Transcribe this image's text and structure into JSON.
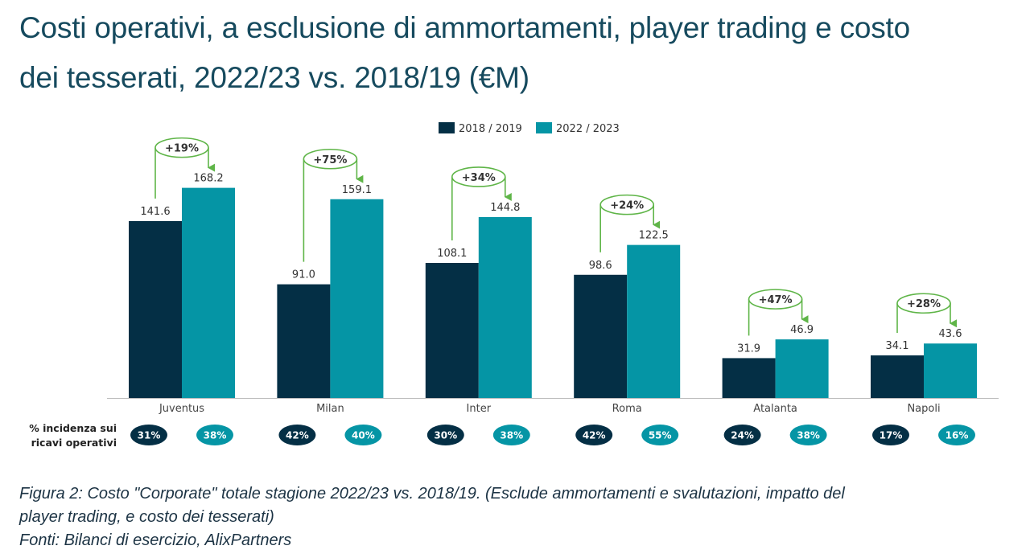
{
  "title": {
    "line1": "Costi operativi, a esclusione di ammortamenti, player trading e costo",
    "line2": "dei tesserati, 2022/23 vs. 2018/19 (€M)"
  },
  "colors": {
    "series_2018": "#042f45",
    "series_2022": "#0595a5",
    "growth": "#5fb548",
    "title": "#164a5e"
  },
  "chart_data": {
    "type": "bar",
    "title": "Costi operativi, a esclusione di ammortamenti, player trading e costo dei tesserati, 2022/23 vs. 2018/19 (€M)",
    "xlabel": "",
    "ylabel": "",
    "ylim": [
      0,
      180
    ],
    "grid": false,
    "legend_position": "top-center",
    "categories": [
      "Juventus",
      "Milan",
      "Inter",
      "Roma",
      "Atalanta",
      "Napoli"
    ],
    "series": [
      {
        "name": "2018 / 2019",
        "values": [
          141.6,
          91.0,
          108.1,
          98.6,
          31.9,
          34.1
        ],
        "labels": [
          "141.6",
          "91.0",
          "108.1",
          "98.6",
          "31.9",
          "34.1"
        ]
      },
      {
        "name": "2022 / 2023",
        "values": [
          168.2,
          159.1,
          144.8,
          122.5,
          46.9,
          43.6
        ],
        "labels": [
          "168.2",
          "159.1",
          "144.8",
          "122.5",
          "46.9",
          "43.6"
        ]
      }
    ],
    "growth_labels": [
      "+19%",
      "+75%",
      "+34%",
      "+24%",
      "+47%",
      "+28%"
    ],
    "incidence": {
      "label_line1": "% incidenza sui",
      "label_line2": "ricavi operativi",
      "values_2018": [
        "31%",
        "42%",
        "30%",
        "42%",
        "24%",
        "17%"
      ],
      "values_2022": [
        "38%",
        "40%",
        "38%",
        "55%",
        "38%",
        "16%"
      ]
    }
  },
  "caption": {
    "line1": "Figura 2: Costo \"Corporate\" totale stagione 2022/23 vs. 2018/19.  (Esclude ammortamenti e svalutazioni, impatto del",
    "line2": "player trading, e costo dei tesserati)",
    "line3": "Fonti: Bilanci di esercizio, AlixPartners"
  }
}
